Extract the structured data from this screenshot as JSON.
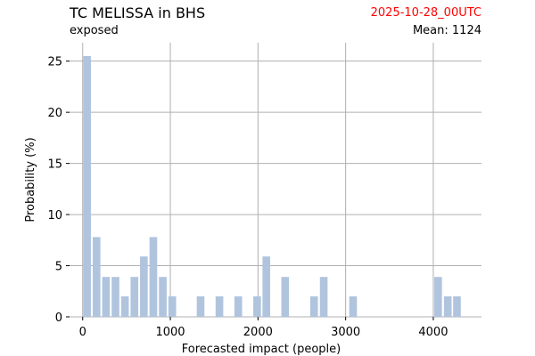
{
  "header": {
    "title": "TC MELISSA in BHS",
    "subtitle": "exposed",
    "date": "2025-10-28_00UTC",
    "mean": "Mean: 1124"
  },
  "colors": {
    "bar": "#b0c4de",
    "grid": "#b0b0b0",
    "date_text": "#ff0000"
  },
  "chart_data": {
    "type": "bar",
    "xlabel": "Forecasted impact (people)",
    "ylabel": "Probability (%)",
    "xlim": [
      -150,
      4550
    ],
    "ylim": [
      0,
      26.8
    ],
    "xticks": [
      0,
      1000,
      2000,
      3000,
      4000
    ],
    "yticks": [
      0,
      5,
      10,
      15,
      20,
      25
    ],
    "grid": true,
    "bin_width": 108,
    "bins": [
      {
        "x": 50,
        "value": 25.5
      },
      {
        "x": 158,
        "value": 7.8
      },
      {
        "x": 266,
        "value": 3.9
      },
      {
        "x": 374,
        "value": 3.9
      },
      {
        "x": 482,
        "value": 2.0
      },
      {
        "x": 590,
        "value": 3.9
      },
      {
        "x": 698,
        "value": 5.9
      },
      {
        "x": 806,
        "value": 7.8
      },
      {
        "x": 914,
        "value": 3.9
      },
      {
        "x": 1022,
        "value": 2.0
      },
      {
        "x": 1345,
        "value": 2.0
      },
      {
        "x": 1560,
        "value": 2.0
      },
      {
        "x": 1775,
        "value": 2.0
      },
      {
        "x": 1990,
        "value": 2.0
      },
      {
        "x": 2095,
        "value": 5.9
      },
      {
        "x": 2310,
        "value": 3.9
      },
      {
        "x": 2640,
        "value": 2.0
      },
      {
        "x": 2750,
        "value": 3.9
      },
      {
        "x": 3085,
        "value": 2.0
      },
      {
        "x": 4055,
        "value": 3.9
      },
      {
        "x": 4165,
        "value": 2.0
      },
      {
        "x": 4270,
        "value": 2.0
      }
    ]
  }
}
